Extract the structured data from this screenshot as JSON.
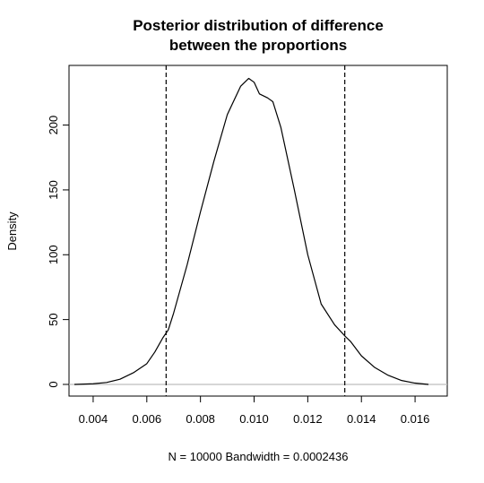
{
  "chart_data": {
    "type": "line",
    "title": "Posterior distribution of difference between the proportions",
    "title_lines": [
      "Posterior distribution of difference",
      "between the proportions"
    ],
    "xlabel": "N = 10000   Bandwidth = 0.0002436",
    "ylabel": "Density",
    "xlim": [
      0.0031,
      0.0172
    ],
    "ylim": [
      -9,
      246
    ],
    "x_ticks": [
      0.004,
      0.006,
      0.008,
      0.01,
      0.012,
      0.014,
      0.016
    ],
    "x_tick_labels": [
      "0.004",
      "0.006",
      "0.008",
      "0.010",
      "0.012",
      "0.014",
      "0.016"
    ],
    "y_ticks": [
      0,
      50,
      100,
      150,
      200
    ],
    "y_tick_labels": [
      "0",
      "50",
      "100",
      "150",
      "200"
    ],
    "grid": false,
    "baseline": {
      "y": 0,
      "color": "#bebebe"
    },
    "vlines": [
      {
        "x": 0.00672,
        "style": "dashed"
      },
      {
        "x": 0.01338,
        "style": "dashed"
      }
    ],
    "series": [
      {
        "color": "#000000",
        "x": [
          0.0033,
          0.004,
          0.0045,
          0.005,
          0.0055,
          0.006,
          0.0063,
          0.0066,
          0.0068,
          0.007,
          0.0075,
          0.008,
          0.0085,
          0.009,
          0.0095,
          0.0098,
          0.01,
          0.0102,
          0.0105,
          0.0107,
          0.011,
          0.0115,
          0.012,
          0.0125,
          0.013,
          0.0134,
          0.0136,
          0.014,
          0.0145,
          0.015,
          0.0155,
          0.016,
          0.0165
        ],
        "y": [
          0,
          0.5,
          1.5,
          4,
          9,
          16,
          25,
          36,
          42,
          55,
          92,
          133,
          172,
          208,
          230,
          236,
          233,
          224,
          221,
          218,
          198,
          150,
          100,
          62,
          46,
          37,
          33,
          22,
          13,
          7,
          3,
          1,
          0
        ]
      }
    ]
  }
}
